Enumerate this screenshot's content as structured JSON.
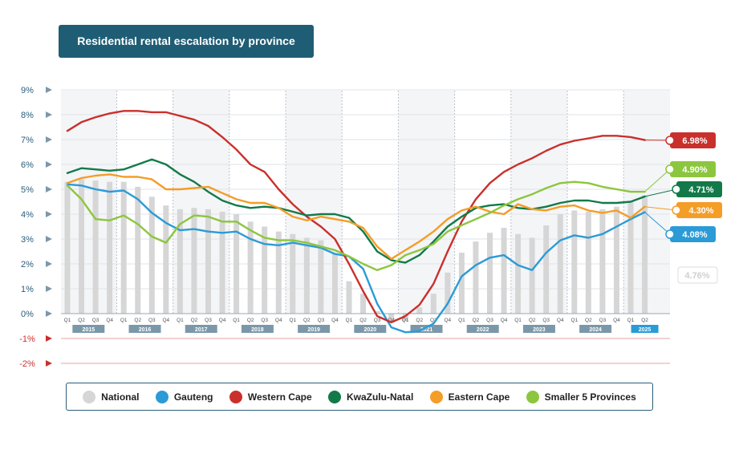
{
  "chart_data": {
    "type": "line",
    "title": "Residential rental escalation by province",
    "y_ticks": [
      "9%",
      "8%",
      "7%",
      "6%",
      "5%",
      "4%",
      "3%",
      "2%",
      "1%",
      "0%",
      "-1%",
      "-2%"
    ],
    "ylim": [
      -2,
      9
    ],
    "quarter_labels": [
      "Q1",
      "Q2",
      "Q3",
      "Q4"
    ],
    "years": [
      "2015",
      "2016",
      "2017",
      "2018",
      "2019",
      "2020",
      "2021",
      "2022",
      "2023",
      "2024",
      "2025"
    ],
    "national_label": "4.76%",
    "national": [
      5.3,
      5.4,
      5.35,
      5.3,
      5.3,
      5.1,
      4.7,
      4.35,
      4.2,
      4.25,
      4.2,
      4.1,
      4.0,
      3.7,
      3.5,
      3.3,
      3.2,
      3.05,
      2.95,
      2.4,
      1.3,
      0.8,
      0.1,
      -0.3,
      -0.3,
      0.25,
      0.8,
      1.65,
      2.45,
      2.9,
      3.25,
      3.45,
      3.2,
      3.05,
      3.55,
      4.0,
      4.15,
      4.1,
      4.2,
      4.3,
      4.5,
      4.76
    ],
    "series": [
      {
        "name": "Gauteng",
        "color": "#2a9bd7",
        "end_label": "4.08%",
        "values": [
          5.2,
          5.15,
          5.0,
          4.9,
          4.95,
          4.6,
          4.05,
          3.65,
          3.35,
          3.4,
          3.3,
          3.25,
          3.3,
          3.0,
          2.8,
          2.75,
          2.85,
          2.75,
          2.65,
          2.4,
          2.3,
          1.8,
          0.4,
          -0.55,
          -0.75,
          -0.7,
          -0.4,
          0.4,
          1.5,
          1.95,
          2.25,
          2.35,
          1.95,
          1.75,
          2.45,
          2.95,
          3.15,
          3.05,
          3.2,
          3.5,
          3.8,
          4.08
        ]
      },
      {
        "name": "Western Cape",
        "color": "#c9302c",
        "end_label": "6.98%",
        "values": [
          7.35,
          7.7,
          7.9,
          8.05,
          8.15,
          8.15,
          8.1,
          8.1,
          7.95,
          7.8,
          7.55,
          7.1,
          6.6,
          6.0,
          5.7,
          5.0,
          4.4,
          3.9,
          3.5,
          3.0,
          2.0,
          0.9,
          -0.1,
          -0.35,
          -0.1,
          0.35,
          1.2,
          2.5,
          3.7,
          4.6,
          5.25,
          5.7,
          6.0,
          6.25,
          6.55,
          6.8,
          6.95,
          7.05,
          7.15,
          7.15,
          7.1,
          6.98
        ]
      },
      {
        "name": "KwaZulu-Natal",
        "color": "#127a49",
        "end_label": "4.71%",
        "values": [
          5.65,
          5.85,
          5.8,
          5.75,
          5.8,
          6.0,
          6.2,
          6.0,
          5.6,
          5.3,
          4.9,
          4.55,
          4.35,
          4.25,
          4.3,
          4.25,
          4.1,
          3.95,
          4.0,
          4.0,
          3.85,
          3.3,
          2.5,
          2.15,
          2.05,
          2.35,
          2.9,
          3.5,
          3.9,
          4.25,
          4.35,
          4.4,
          4.25,
          4.2,
          4.3,
          4.45,
          4.55,
          4.55,
          4.45,
          4.45,
          4.5,
          4.71
        ]
      },
      {
        "name": "Eastern Cape",
        "color": "#f49d27",
        "end_label": "4.30%",
        "values": [
          5.25,
          5.45,
          5.55,
          5.6,
          5.5,
          5.5,
          5.4,
          5.0,
          5.0,
          5.05,
          5.1,
          4.85,
          4.6,
          4.45,
          4.45,
          4.25,
          3.9,
          3.75,
          3.9,
          3.8,
          3.7,
          3.45,
          2.7,
          2.2,
          2.55,
          2.9,
          3.3,
          3.8,
          4.15,
          4.3,
          4.1,
          4.0,
          4.4,
          4.2,
          4.15,
          4.3,
          4.35,
          4.15,
          4.05,
          4.15,
          3.85,
          4.3
        ]
      },
      {
        "name": "Smaller 5 Provinces",
        "color": "#8cc63e",
        "end_label": "4.90%",
        "values": [
          5.15,
          4.6,
          3.8,
          3.75,
          3.95,
          3.6,
          3.1,
          2.85,
          3.6,
          3.95,
          3.9,
          3.7,
          3.7,
          3.35,
          3.05,
          2.95,
          2.95,
          2.85,
          2.7,
          2.55,
          2.3,
          2.0,
          1.75,
          1.95,
          2.35,
          2.55,
          2.8,
          3.3,
          3.55,
          3.8,
          4.05,
          4.35,
          4.6,
          4.8,
          5.05,
          5.25,
          5.3,
          5.25,
          5.1,
          5.0,
          4.9,
          4.9
        ]
      }
    ],
    "legend": [
      {
        "name": "National",
        "color": "#d6d6d6"
      },
      {
        "name": "Gauteng",
        "color": "#2a9bd7"
      },
      {
        "name": "Western Cape",
        "color": "#c9302c"
      },
      {
        "name": "KwaZulu-Natal",
        "color": "#127a49"
      },
      {
        "name": "Eastern Cape",
        "color": "#f49d27"
      },
      {
        "name": "Smaller 5 Provinces",
        "color": "#8cc63e"
      }
    ],
    "colors": {
      "title_bg": "#1f5d75",
      "axis_text": "#2a5e7a",
      "negative": "#c9302c",
      "year_box": "#7b98aa",
      "year_box_current": "#2a9bd7"
    }
  }
}
